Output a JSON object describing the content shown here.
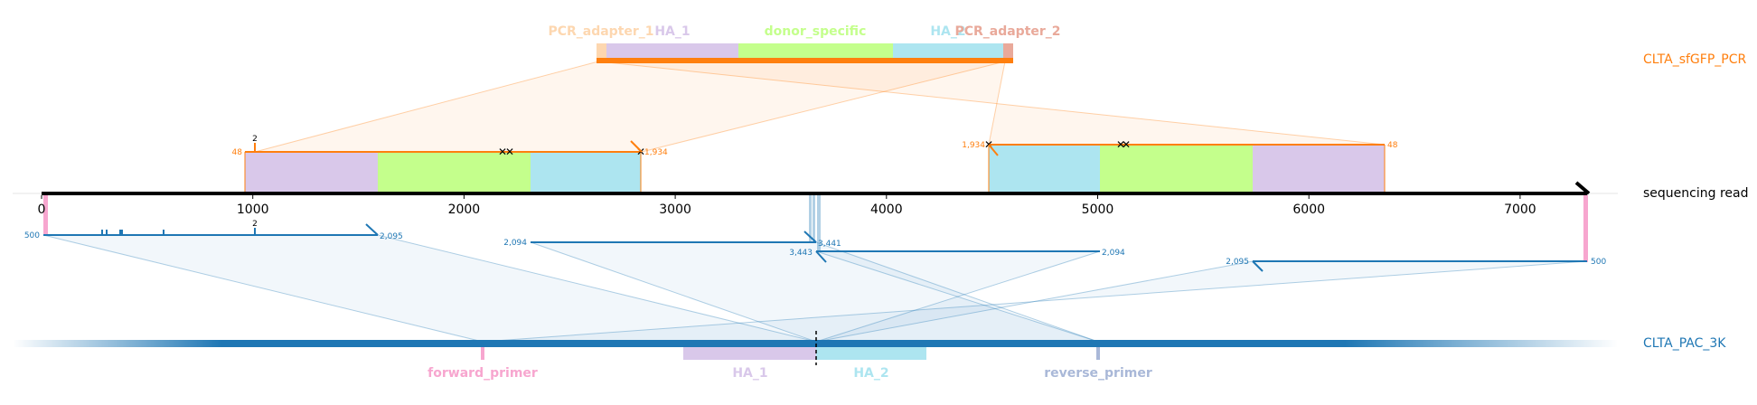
{
  "reads": {
    "top_reference": "CLTA_sfGFP_PCR",
    "sequencing_read": "sequencing read",
    "bottom_reference": "CLTA_PAC_3K"
  },
  "top_features": {
    "pcr_adapter_1": "PCR_adapter_1",
    "ha_1": "HA_1",
    "donor_specific": "donor_specific",
    "ha_2": "HA_2",
    "pcr_adapter_2": "PCR_adapter_2"
  },
  "bottom_features": {
    "forward_primer": "forward_primer",
    "ha_1": "HA_1",
    "ha_2": "HA_2",
    "reverse_primer": "reverse_primer"
  },
  "axis": {
    "ticks": [
      "0",
      "1000",
      "2000",
      "3000",
      "4000",
      "5000",
      "6000",
      "7000"
    ]
  },
  "top_alignment_labels": {
    "a1_start": "48",
    "a1_end": "1,934",
    "a1_count": "2",
    "a2_start": "1,934",
    "a2_end": "48"
  },
  "bottom_alignment_labels": {
    "b1_start": "500",
    "b1_end": "2,095",
    "b1_count": "2",
    "b2_start": "2,094",
    "b2_end": "3,441",
    "b3_start": "3,443",
    "b3_end": "2,094",
    "b4_start": "2,095",
    "b4_end": "500"
  },
  "colors": {
    "orange": "#ff7f0e",
    "blue": "#1f77b4",
    "ha_1": "#d9c8ea",
    "donor_specific": "#c4ff8c",
    "ha_2": "#ade5f0",
    "pcr_adapter_1": "#fdd7b0",
    "pcr_adapter_2": "#e9a99a",
    "forward_primer": "#f7a6cf",
    "reverse_primer": "#a9b8d8"
  }
}
